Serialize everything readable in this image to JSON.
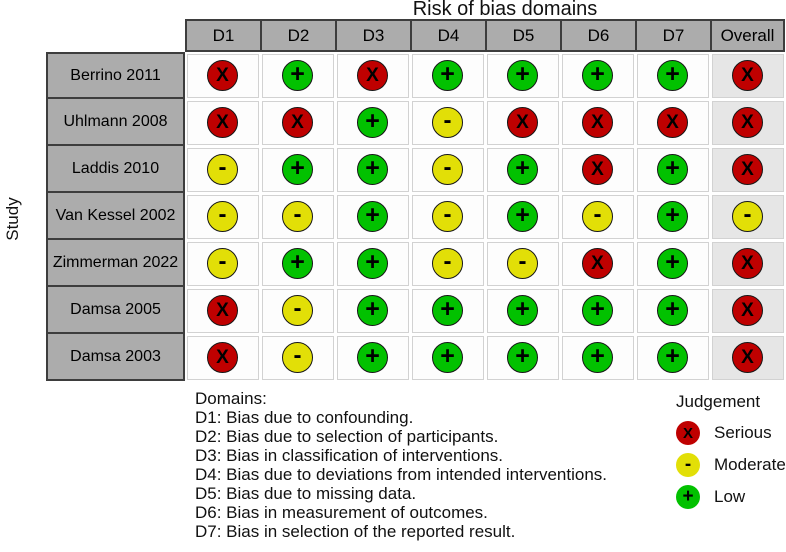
{
  "chart_data": {
    "type": "heatmap",
    "title": "Risk of bias domains",
    "ylabel": "Study",
    "legend_position": "bottom-right",
    "grid": false,
    "columns": [
      "D1",
      "D2",
      "D3",
      "D4",
      "D5",
      "D6",
      "D7",
      "Overall"
    ],
    "judgements": {
      "serious": {
        "label": "Serious",
        "symbol": "X",
        "color": "#BF0000"
      },
      "moderate": {
        "label": "Moderate",
        "symbol": "-",
        "color": "#E2DF07"
      },
      "low": {
        "label": "Low",
        "symbol": "+",
        "color": "#02C100"
      }
    },
    "rows": [
      {
        "study": "Berrino 2011",
        "ratings": [
          "serious",
          "low",
          "serious",
          "low",
          "low",
          "low",
          "low",
          "serious"
        ]
      },
      {
        "study": "Uhlmann 2008",
        "ratings": [
          "serious",
          "serious",
          "low",
          "moderate",
          "serious",
          "serious",
          "serious",
          "serious"
        ]
      },
      {
        "study": "Laddis 2010",
        "ratings": [
          "moderate",
          "low",
          "low",
          "moderate",
          "low",
          "serious",
          "low",
          "serious"
        ]
      },
      {
        "study": "Van Kessel 2002",
        "ratings": [
          "moderate",
          "moderate",
          "low",
          "moderate",
          "low",
          "moderate",
          "low",
          "moderate"
        ]
      },
      {
        "study": "Zimmerman 2022",
        "ratings": [
          "moderate",
          "low",
          "low",
          "moderate",
          "moderate",
          "serious",
          "low",
          "serious"
        ]
      },
      {
        "study": "Damsa 2005",
        "ratings": [
          "serious",
          "moderate",
          "low",
          "low",
          "low",
          "low",
          "low",
          "serious"
        ]
      },
      {
        "study": "Damsa 2003",
        "ratings": [
          "serious",
          "moderate",
          "low",
          "low",
          "low",
          "low",
          "low",
          "serious"
        ]
      }
    ],
    "domains_legend": {
      "heading": "Domains:",
      "items": [
        "D1: Bias due to confounding.",
        "D2: Bias due to selection of participants.",
        "D3: Bias in classification of interventions.",
        "D4: Bias due to deviations from intended interventions.",
        "D5: Bias due to missing data.",
        "D6: Bias in measurement of outcomes.",
        "D7: Bias in selection of the reported result."
      ]
    },
    "judgement_legend": {
      "heading": "Judgement",
      "order": [
        "serious",
        "moderate",
        "low"
      ]
    },
    "colors": {
      "header_fill": "#ACACAC",
      "header_border": "#3D3D3D",
      "overall_column_fill": "#E6E6E6",
      "cell_fill": "#FDFDFD",
      "cell_border": "#D2D2D2"
    }
  }
}
